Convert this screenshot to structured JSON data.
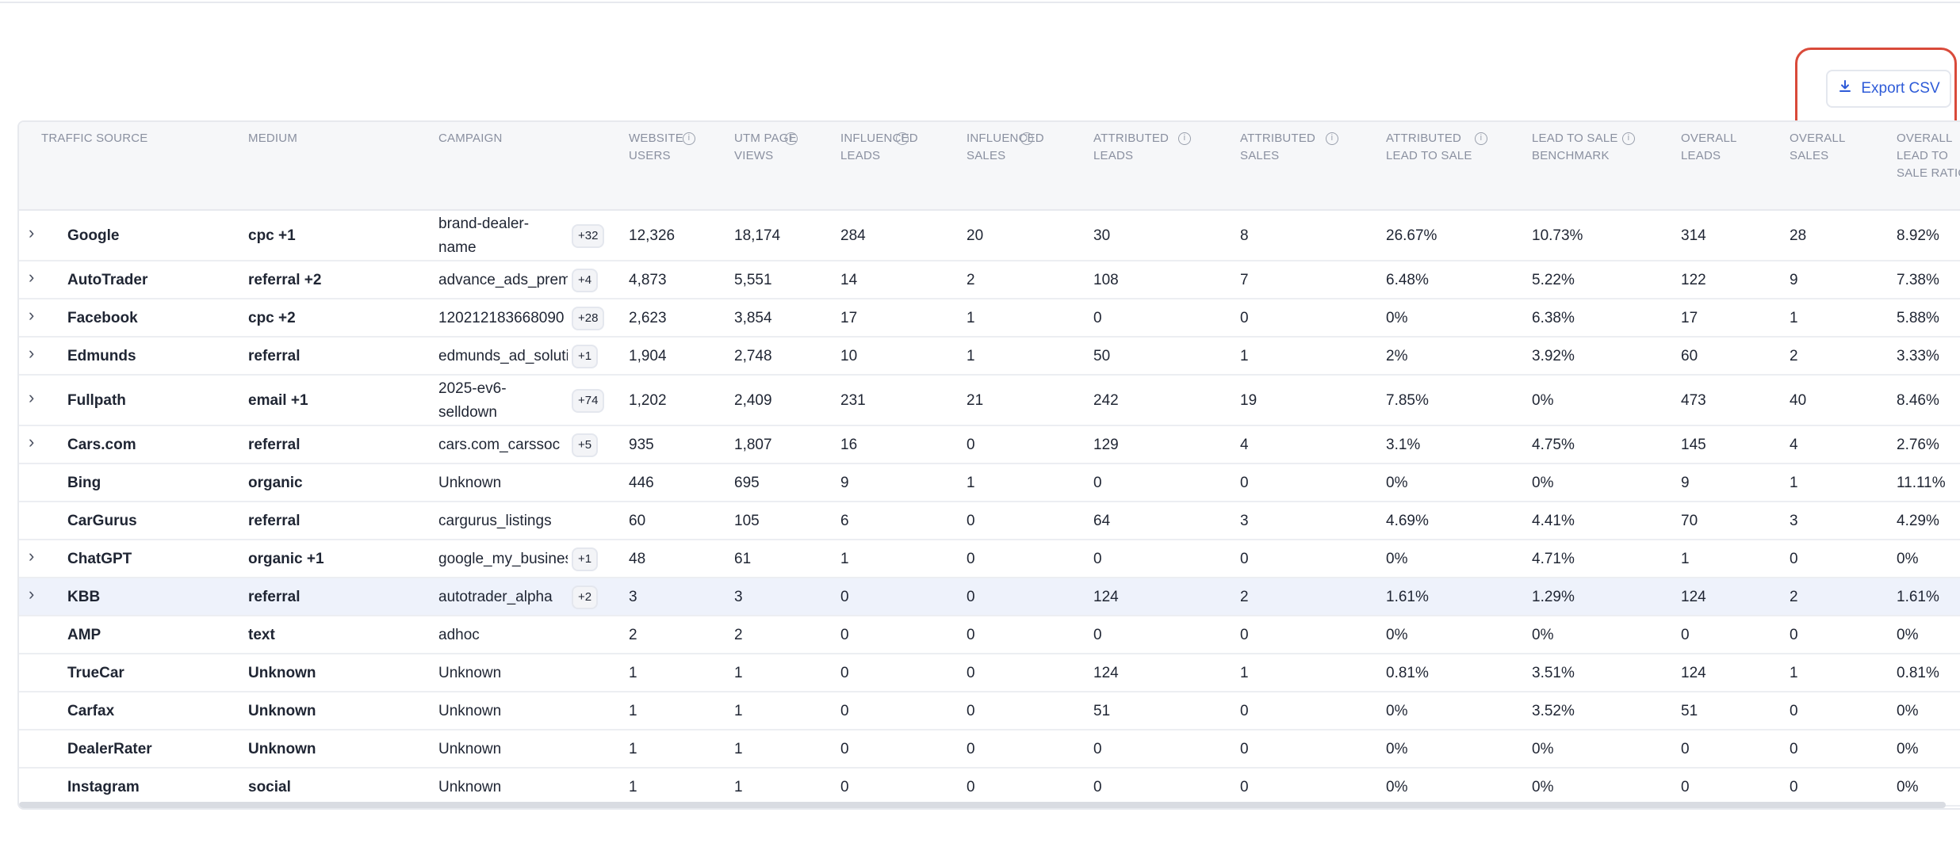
{
  "toolbar": {
    "export_label": "Export CSV"
  },
  "columns": [
    {
      "label": "TRAFFIC SOURCE",
      "info": false
    },
    {
      "label": "MEDIUM",
      "info": false
    },
    {
      "label": "CAMPAIGN",
      "info": false
    },
    {
      "label": "WEBSITE USERS",
      "info": true
    },
    {
      "label": "UTM PAGE VIEWS",
      "info": true
    },
    {
      "label": "INFLUENCED LEADS",
      "info": true
    },
    {
      "label": "INFLUENCED SALES",
      "info": true
    },
    {
      "label": "ATTRIBUTED LEADS",
      "info": true
    },
    {
      "label": "ATTRIBUTED SALES",
      "info": true
    },
    {
      "label": "ATTRIBUTED LEAD TO SALE",
      "info": true
    },
    {
      "label": "LEAD TO SALE BENCHMARK",
      "info": true
    },
    {
      "label": "OVERALL LEADS",
      "info": false
    },
    {
      "label": "OVERALL SALES",
      "info": false
    },
    {
      "label": "OVERALL LEAD TO SALE RATIO",
      "info": false
    }
  ],
  "rows": [
    {
      "expand": true,
      "source": "Google",
      "medium": "cpc +1",
      "campaign": "brand-dealer-name",
      "extra": "+32",
      "cells": [
        "12,326",
        "18,174",
        "284",
        "20",
        "30",
        "8",
        "26.67%",
        "10.73%",
        "314",
        "28",
        "8.92%"
      ]
    },
    {
      "expand": true,
      "source": "AutoTrader",
      "medium": "referral +2",
      "campaign": "advance_ads_premium",
      "extra": "+4",
      "cells": [
        "4,873",
        "5,551",
        "14",
        "2",
        "108",
        "7",
        "6.48%",
        "5.22%",
        "122",
        "9",
        "7.38%"
      ]
    },
    {
      "expand": true,
      "source": "Facebook",
      "medium": "cpc +2",
      "campaign": "120212183668090",
      "extra": "+28",
      "cells": [
        "2,623",
        "3,854",
        "17",
        "1",
        "0",
        "0",
        "0%",
        "6.38%",
        "17",
        "1",
        "5.88%"
      ]
    },
    {
      "expand": true,
      "source": "Edmunds",
      "medium": "referral",
      "campaign": "edmunds_ad_solutions",
      "extra": "+1",
      "cells": [
        "1,904",
        "2,748",
        "10",
        "1",
        "50",
        "1",
        "2%",
        "3.92%",
        "60",
        "2",
        "3.33%"
      ]
    },
    {
      "expand": true,
      "source": "Fullpath",
      "medium": "email +1",
      "campaign": "2025-ev6-selldown",
      "extra": "+74",
      "cells": [
        "1,202",
        "2,409",
        "231",
        "21",
        "242",
        "19",
        "7.85%",
        "0%",
        "473",
        "40",
        "8.46%"
      ]
    },
    {
      "expand": true,
      "source": "Cars.com",
      "medium": "referral",
      "campaign": "cars.com_carssoc",
      "extra": "+5",
      "cells": [
        "935",
        "1,807",
        "16",
        "0",
        "129",
        "4",
        "3.1%",
        "4.75%",
        "145",
        "4",
        "2.76%"
      ]
    },
    {
      "expand": false,
      "source": "Bing",
      "medium": "organic",
      "campaign": "Unknown",
      "extra": "",
      "cells": [
        "446",
        "695",
        "9",
        "1",
        "0",
        "0",
        "0%",
        "0%",
        "9",
        "1",
        "11.11%"
      ]
    },
    {
      "expand": false,
      "source": "CarGurus",
      "medium": "referral",
      "campaign": "cargurus_listings",
      "extra": "",
      "cells": [
        "60",
        "105",
        "6",
        "0",
        "64",
        "3",
        "4.69%",
        "4.41%",
        "70",
        "3",
        "4.29%"
      ]
    },
    {
      "expand": true,
      "source": "ChatGPT",
      "medium": "organic +1",
      "campaign": "google_my_business",
      "extra": "+1",
      "cells": [
        "48",
        "61",
        "1",
        "0",
        "0",
        "0",
        "0%",
        "4.71%",
        "1",
        "0",
        "0%"
      ]
    },
    {
      "expand": true,
      "source": "KBB",
      "medium": "referral",
      "campaign": "autotrader_alpha",
      "extra": "+2",
      "cells": [
        "3",
        "3",
        "0",
        "0",
        "124",
        "2",
        "1.61%",
        "1.29%",
        "124",
        "2",
        "1.61%"
      ],
      "highlight": true
    },
    {
      "expand": false,
      "source": "AMP",
      "medium": "text",
      "campaign": "adhoc",
      "extra": "",
      "cells": [
        "2",
        "2",
        "0",
        "0",
        "0",
        "0",
        "0%",
        "0%",
        "0",
        "0",
        "0%"
      ]
    },
    {
      "expand": false,
      "source": "TrueCar",
      "medium": "Unknown",
      "campaign": "Unknown",
      "extra": "",
      "cells": [
        "1",
        "1",
        "0",
        "0",
        "124",
        "1",
        "0.81%",
        "3.51%",
        "124",
        "1",
        "0.81%"
      ]
    },
    {
      "expand": false,
      "source": "Carfax",
      "medium": "Unknown",
      "campaign": "Unknown",
      "extra": "",
      "cells": [
        "1",
        "1",
        "0",
        "0",
        "51",
        "0",
        "0%",
        "3.52%",
        "51",
        "0",
        "0%"
      ]
    },
    {
      "expand": false,
      "source": "DealerRater",
      "medium": "Unknown",
      "campaign": "Unknown",
      "extra": "",
      "cells": [
        "1",
        "1",
        "0",
        "0",
        "0",
        "0",
        "0%",
        "0%",
        "0",
        "0",
        "0%"
      ]
    },
    {
      "expand": false,
      "source": "Instagram",
      "medium": "social",
      "campaign": "Unknown",
      "extra": "",
      "cells": [
        "1",
        "1",
        "0",
        "0",
        "0",
        "0",
        "0%",
        "0%",
        "0",
        "0",
        "0%"
      ]
    }
  ]
}
